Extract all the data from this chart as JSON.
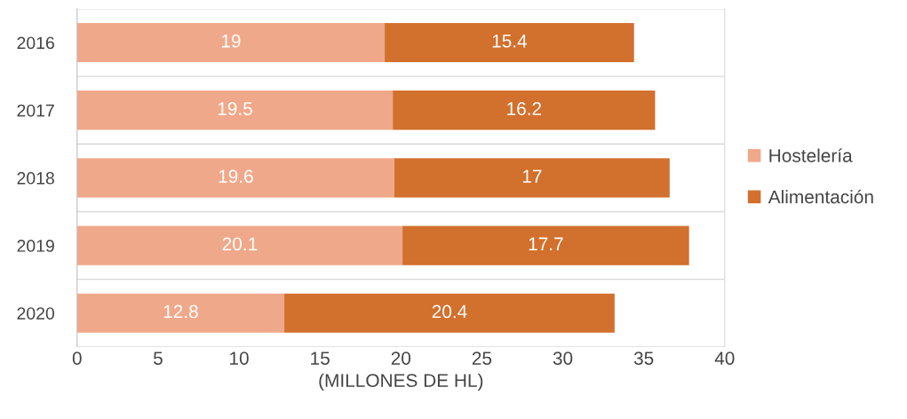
{
  "chart_data": {
    "type": "bar",
    "orientation": "horizontal",
    "stacked": true,
    "xlabel": "(MILLONES DE HL)",
    "categories": [
      "2016",
      "2017",
      "2018",
      "2019",
      "2020"
    ],
    "series": [
      {
        "name": "Hostelería",
        "color": "#f0a88a",
        "values": [
          19,
          19.5,
          19.6,
          20.1,
          12.8
        ]
      },
      {
        "name": "Alimentación",
        "color": "#d2702d",
        "values": [
          15.4,
          16.2,
          17,
          17.7,
          20.4
        ]
      }
    ],
    "xlim": [
      0,
      40
    ],
    "xticks": [
      0,
      5,
      10,
      15,
      20,
      25,
      30,
      35,
      40
    ],
    "grid": "y",
    "legend": "right",
    "data_labels": true
  }
}
